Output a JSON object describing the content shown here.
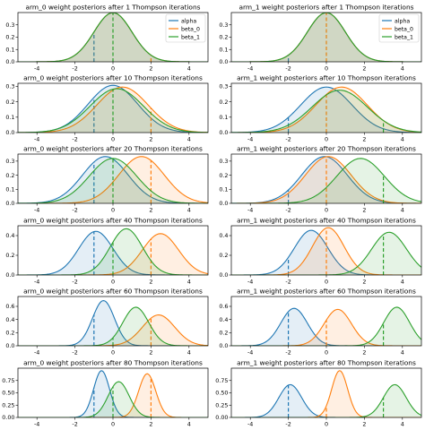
{
  "colors": {
    "alpha": "#1f77b4",
    "beta_0": "#ff7f0e",
    "beta_1": "#2ca02c"
  },
  "legend": {
    "placement": "top-right",
    "entries": [
      "alpha",
      "beta_0",
      "beta_1"
    ]
  },
  "chart_data": [
    {
      "type": "area",
      "title": "arm_0 weight posteriors after 1 Thompson iterations",
      "xlim": [
        -5,
        5
      ],
      "ylim": [
        0,
        0.4
      ],
      "xticks": [
        -4,
        -2,
        0,
        2,
        4
      ],
      "yticks": [
        0.0,
        0.1,
        0.2,
        0.3
      ],
      "yticklabels": [
        "0.0",
        "0.1",
        "0.2",
        "0.3"
      ],
      "legend": true,
      "grid": false,
      "series": [
        {
          "name": "alpha",
          "mean": 0,
          "sd": 1,
          "true_value": -1
        },
        {
          "name": "beta_0",
          "mean": 0,
          "sd": 1,
          "true_value": 2
        },
        {
          "name": "beta_1",
          "mean": 0,
          "sd": 1,
          "true_value": 0
        }
      ]
    },
    {
      "type": "area",
      "title": "arm_1 weight posteriors after 1 Thompson iterations",
      "xlim": [
        -5,
        5
      ],
      "ylim": [
        0,
        0.4
      ],
      "xticks": [
        -4,
        -2,
        0,
        2,
        4
      ],
      "yticks": [
        0.0,
        0.1,
        0.2,
        0.3
      ],
      "yticklabels": [
        "0.0",
        "0.1",
        "0.2",
        "0.3"
      ],
      "legend": true,
      "grid": false,
      "series": [
        {
          "name": "alpha",
          "mean": 0,
          "sd": 1,
          "true_value": -2
        },
        {
          "name": "beta_0",
          "mean": 0,
          "sd": 1,
          "true_value": 0
        },
        {
          "name": "beta_1",
          "mean": 0,
          "sd": 1,
          "true_value": 3
        }
      ]
    },
    {
      "type": "area",
      "title": "arm_0 weight posteriors after 10 Thompson iterations",
      "xlim": [
        -5,
        5
      ],
      "ylim": [
        0,
        0.32
      ],
      "xticks": [
        -4,
        -2,
        0,
        2,
        4
      ],
      "yticks": [
        0.0,
        0.1,
        0.2,
        0.3
      ],
      "yticklabels": [
        "0.0",
        "0.1",
        "0.2",
        "0.3"
      ],
      "legend": false,
      "grid": false,
      "series": [
        {
          "name": "alpha",
          "mean": 0,
          "sd": 1.3,
          "true_value": -1
        },
        {
          "name": "beta_0",
          "mean": 0.5,
          "sd": 1.35,
          "true_value": 2
        },
        {
          "name": "beta_1",
          "mean": 0.2,
          "sd": 1.4,
          "true_value": 0
        }
      ]
    },
    {
      "type": "area",
      "title": "arm_1 weight posteriors after 10 Thompson iterations",
      "xlim": [
        -5,
        5
      ],
      "ylim": [
        0,
        0.32
      ],
      "xticks": [
        -4,
        -2,
        0,
        2,
        4
      ],
      "yticks": [
        0.0,
        0.1,
        0.2,
        0.3
      ],
      "yticklabels": [
        "0.0",
        "0.1",
        "0.2",
        "0.3"
      ],
      "legend": false,
      "grid": false,
      "series": [
        {
          "name": "alpha",
          "mean": 0,
          "sd": 1.35,
          "true_value": -2
        },
        {
          "name": "beta_0",
          "mean": 0.8,
          "sd": 1.35,
          "true_value": 0
        },
        {
          "name": "beta_1",
          "mean": 0.7,
          "sd": 1.45,
          "true_value": 3
        }
      ]
    },
    {
      "type": "area",
      "title": "arm_0 weight posteriors after 20 Thompson iterations",
      "xlim": [
        -5,
        5
      ],
      "ylim": [
        0,
        0.35
      ],
      "xticks": [
        -4,
        -2,
        0,
        2,
        4
      ],
      "yticks": [
        0.0,
        0.1,
        0.2,
        0.3
      ],
      "yticklabels": [
        "0.0",
        "0.1",
        "0.2",
        "0.3"
      ],
      "legend": false,
      "grid": false,
      "series": [
        {
          "name": "alpha",
          "mean": -0.4,
          "sd": 1.2,
          "true_value": -1
        },
        {
          "name": "beta_0",
          "mean": 1.5,
          "sd": 1.2,
          "true_value": 2
        },
        {
          "name": "beta_1",
          "mean": 0,
          "sd": 1.25,
          "true_value": 0
        }
      ]
    },
    {
      "type": "area",
      "title": "arm_1 weight posteriors after 20 Thompson iterations",
      "xlim": [
        -5,
        5
      ],
      "ylim": [
        0,
        0.35
      ],
      "xticks": [
        -4,
        -2,
        0,
        2,
        4
      ],
      "yticks": [
        0.0,
        0.1,
        0.2,
        0.3
      ],
      "yticklabels": [
        "0.0",
        "0.1",
        "0.2",
        "0.3"
      ],
      "legend": false,
      "grid": false,
      "series": [
        {
          "name": "alpha",
          "mean": -0.1,
          "sd": 1.2,
          "true_value": -2
        },
        {
          "name": "beta_0",
          "mean": 0.1,
          "sd": 1.2,
          "true_value": 0
        },
        {
          "name": "beta_1",
          "mean": 1.8,
          "sd": 1.25,
          "true_value": 3
        }
      ]
    },
    {
      "type": "area",
      "title": "arm_0 weight posteriors after 40 Thompson iterations",
      "xlim": [
        -5,
        5
      ],
      "ylim": [
        0,
        0.5
      ],
      "xticks": [
        -4,
        -2,
        0,
        2,
        4
      ],
      "yticks": [
        0.0,
        0.2,
        0.4
      ],
      "yticklabels": [
        "0.0",
        "0.2",
        "0.4"
      ],
      "legend": false,
      "grid": false,
      "series": [
        {
          "name": "alpha",
          "mean": -0.9,
          "sd": 0.9,
          "true_value": -1
        },
        {
          "name": "beta_0",
          "mean": 2.5,
          "sd": 0.95,
          "true_value": 2
        },
        {
          "name": "beta_1",
          "mean": 0.7,
          "sd": 0.85,
          "true_value": 0
        }
      ]
    },
    {
      "type": "area",
      "title": "arm_1 weight posteriors after 40 Thompson iterations",
      "xlim": [
        -5,
        5
      ],
      "ylim": [
        0,
        0.5
      ],
      "xticks": [
        -4,
        -2,
        0,
        2,
        4
      ],
      "yticks": [
        0.0,
        0.2,
        0.4
      ],
      "yticklabels": [
        "0.0",
        "0.2",
        "0.4"
      ],
      "legend": false,
      "grid": false,
      "series": [
        {
          "name": "alpha",
          "mean": -0.8,
          "sd": 0.88,
          "true_value": -2
        },
        {
          "name": "beta_0",
          "mean": 0.1,
          "sd": 0.83,
          "true_value": 0
        },
        {
          "name": "beta_1",
          "mean": 3.3,
          "sd": 0.92,
          "true_value": 3
        }
      ]
    },
    {
      "type": "area",
      "title": "arm_0 weight posteriors after 60 Thompson iterations",
      "xlim": [
        -5,
        5
      ],
      "ylim": [
        0,
        0.75
      ],
      "xticks": [
        -4,
        -2,
        0,
        2,
        4
      ],
      "yticks": [
        0.0,
        0.2,
        0.4,
        0.6
      ],
      "yticklabels": [
        "0.0",
        "0.2",
        "0.4",
        "0.6"
      ],
      "legend": false,
      "grid": false,
      "series": [
        {
          "name": "alpha",
          "mean": -0.5,
          "sd": 0.58,
          "true_value": -1
        },
        {
          "name": "beta_0",
          "mean": 2.4,
          "sd": 0.85,
          "true_value": 2
        },
        {
          "name": "beta_1",
          "mean": 1.2,
          "sd": 0.68,
          "true_value": 0
        }
      ]
    },
    {
      "type": "area",
      "title": "arm_1 weight posteriors after 60 Thompson iterations",
      "xlim": [
        -5,
        5
      ],
      "ylim": [
        0,
        0.75
      ],
      "xticks": [
        -4,
        -2,
        0,
        2,
        4
      ],
      "yticks": [
        0.0,
        0.2,
        0.4,
        0.6
      ],
      "yticklabels": [
        "0.0",
        "0.2",
        "0.4",
        "0.6"
      ],
      "legend": false,
      "grid": false,
      "series": [
        {
          "name": "alpha",
          "mean": -1.7,
          "sd": 0.7,
          "true_value": -2
        },
        {
          "name": "beta_0",
          "mean": 0.6,
          "sd": 0.72,
          "true_value": 0
        },
        {
          "name": "beta_1",
          "mean": 3.7,
          "sd": 0.68,
          "true_value": 3
        }
      ]
    },
    {
      "type": "area",
      "title": "arm_0 weight posteriors after 80 Thompson iterations",
      "xlim": [
        -5,
        5
      ],
      "ylim": [
        0,
        1.0
      ],
      "xticks": [
        -4,
        -2,
        0,
        2,
        4
      ],
      "yticks": [
        0.0,
        0.25,
        0.5,
        0.75
      ],
      "yticklabels": [
        "0.00",
        "0.25",
        "0.50",
        "0.75"
      ],
      "legend": false,
      "grid": false,
      "series": [
        {
          "name": "alpha",
          "mean": -0.6,
          "sd": 0.42,
          "true_value": -1
        },
        {
          "name": "beta_0",
          "mean": 1.8,
          "sd": 0.45,
          "true_value": 2
        },
        {
          "name": "beta_1",
          "mean": 0.3,
          "sd": 0.55,
          "true_value": 0
        }
      ]
    },
    {
      "type": "area",
      "title": "arm_1 weight posteriors after 80 Thompson iterations",
      "xlim": [
        -5,
        5
      ],
      "ylim": [
        0,
        1.0
      ],
      "xticks": [
        -4,
        -2,
        0,
        2,
        4
      ],
      "yticks": [
        0.0,
        0.25,
        0.5,
        0.75
      ],
      "yticklabels": [
        "0.00",
        "0.25",
        "0.50",
        "0.75"
      ],
      "legend": false,
      "grid": false,
      "series": [
        {
          "name": "alpha",
          "mean": -1.9,
          "sd": 0.6,
          "true_value": -2
        },
        {
          "name": "beta_0",
          "mean": 0.7,
          "sd": 0.42,
          "true_value": 0
        },
        {
          "name": "beta_1",
          "mean": 3.6,
          "sd": 0.6,
          "true_value": 3
        }
      ]
    }
  ]
}
